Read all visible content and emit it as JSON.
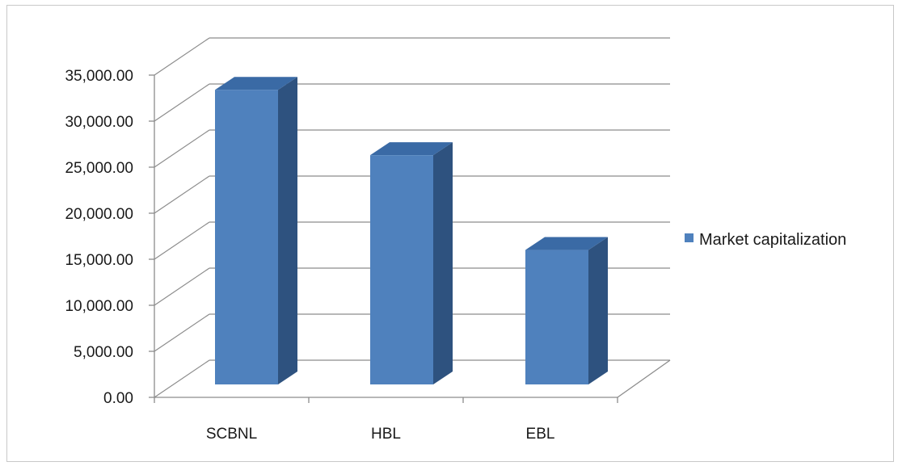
{
  "chart_data": {
    "type": "bar",
    "style": "3d-clustered-column",
    "categories": [
      "SCBNL",
      "HBL",
      "EBL"
    ],
    "series": [
      {
        "name": "Market capitalization",
        "values": [
          32000,
          24900,
          14600
        ],
        "color": "#4f81bd"
      }
    ],
    "y_ticks": [
      "0.00",
      "5,000.00",
      "10,000.00",
      "15,000.00",
      "20,000.00",
      "25,000.00",
      "30,000.00",
      "35,000.00"
    ],
    "ylim": [
      0,
      35000
    ],
    "grid": true,
    "legend_position": "right"
  },
  "colors": {
    "bar_front": "#4f81bd",
    "bar_side": "#2e527f",
    "bar_top": "#3a6aa5",
    "gridline": "#8c8c8c",
    "axis": "#8c8c8c",
    "frame_border": "#c8c8c8"
  }
}
